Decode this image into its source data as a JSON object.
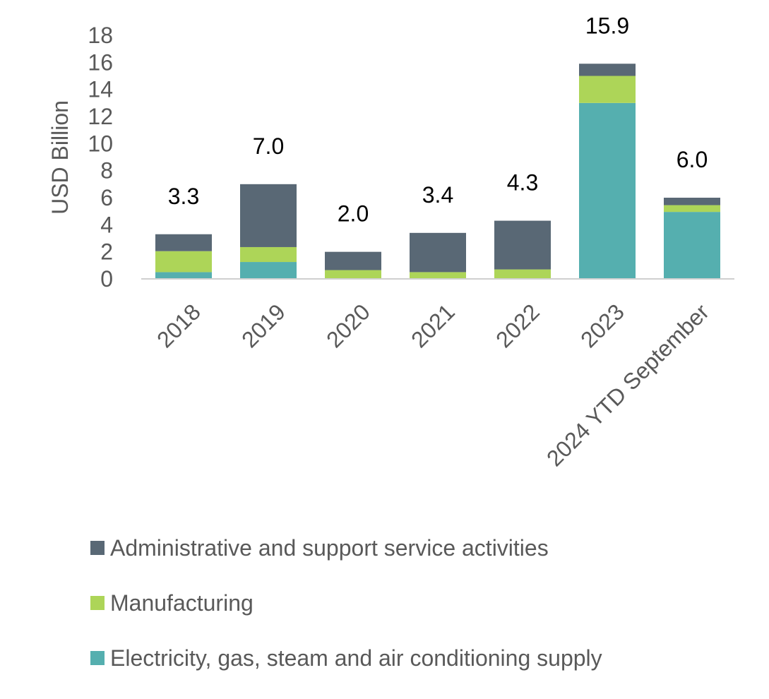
{
  "chart_data": {
    "type": "bar",
    "stacked": true,
    "title": "",
    "xlabel": "",
    "ylabel": "USD Billion",
    "ylim": [
      0,
      18
    ],
    "yticks": [
      0,
      2,
      4,
      6,
      8,
      10,
      12,
      14,
      16,
      18
    ],
    "categories": [
      "2018",
      "2019",
      "2020",
      "2021",
      "2022",
      "2023",
      "2024 YTD September"
    ],
    "totals": [
      3.3,
      7.0,
      2.0,
      3.4,
      4.3,
      15.9,
      6.0
    ],
    "total_labels": [
      "3.3",
      "7.0",
      "2.0",
      "3.4",
      "4.3",
      "15.9",
      "6.0"
    ],
    "series": [
      {
        "name": "Electricity, gas, steam and air conditioning supply",
        "color": "#55AFAF",
        "values": [
          0.5,
          1.25,
          0.0,
          0.0,
          0.0,
          13.0,
          4.95
        ]
      },
      {
        "name": "Manufacturing",
        "color": "#ADD558",
        "values": [
          1.55,
          1.1,
          0.65,
          0.5,
          0.7,
          2.0,
          0.5
        ]
      },
      {
        "name": "Administrative and support service activities",
        "color": "#596875",
        "values": [
          1.25,
          4.65,
          1.35,
          2.9,
          3.6,
          0.9,
          0.55
        ]
      }
    ],
    "legend_order": [
      2,
      1,
      0
    ],
    "legend_position": "bottom",
    "grid": false
  }
}
